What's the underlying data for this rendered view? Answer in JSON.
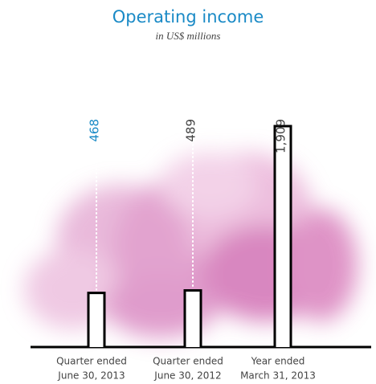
{
  "chart_data": {
    "type": "bar",
    "title": "Operating income",
    "subtitle": "in US$ millions",
    "categories": [
      [
        "Quarter ended",
        "June 30, 2013"
      ],
      [
        "Quarter ended",
        "June 30, 2012"
      ],
      [
        "Year ended",
        "March 31, 2013"
      ]
    ],
    "values": [
      468,
      489,
      1909
    ],
    "value_labels": [
      "468",
      "489",
      "1,909"
    ],
    "label_colors": [
      "#1a8ac6",
      "#444444",
      "#444444"
    ],
    "title_color": "#1a8ac6",
    "color": "#ffffff"
  }
}
